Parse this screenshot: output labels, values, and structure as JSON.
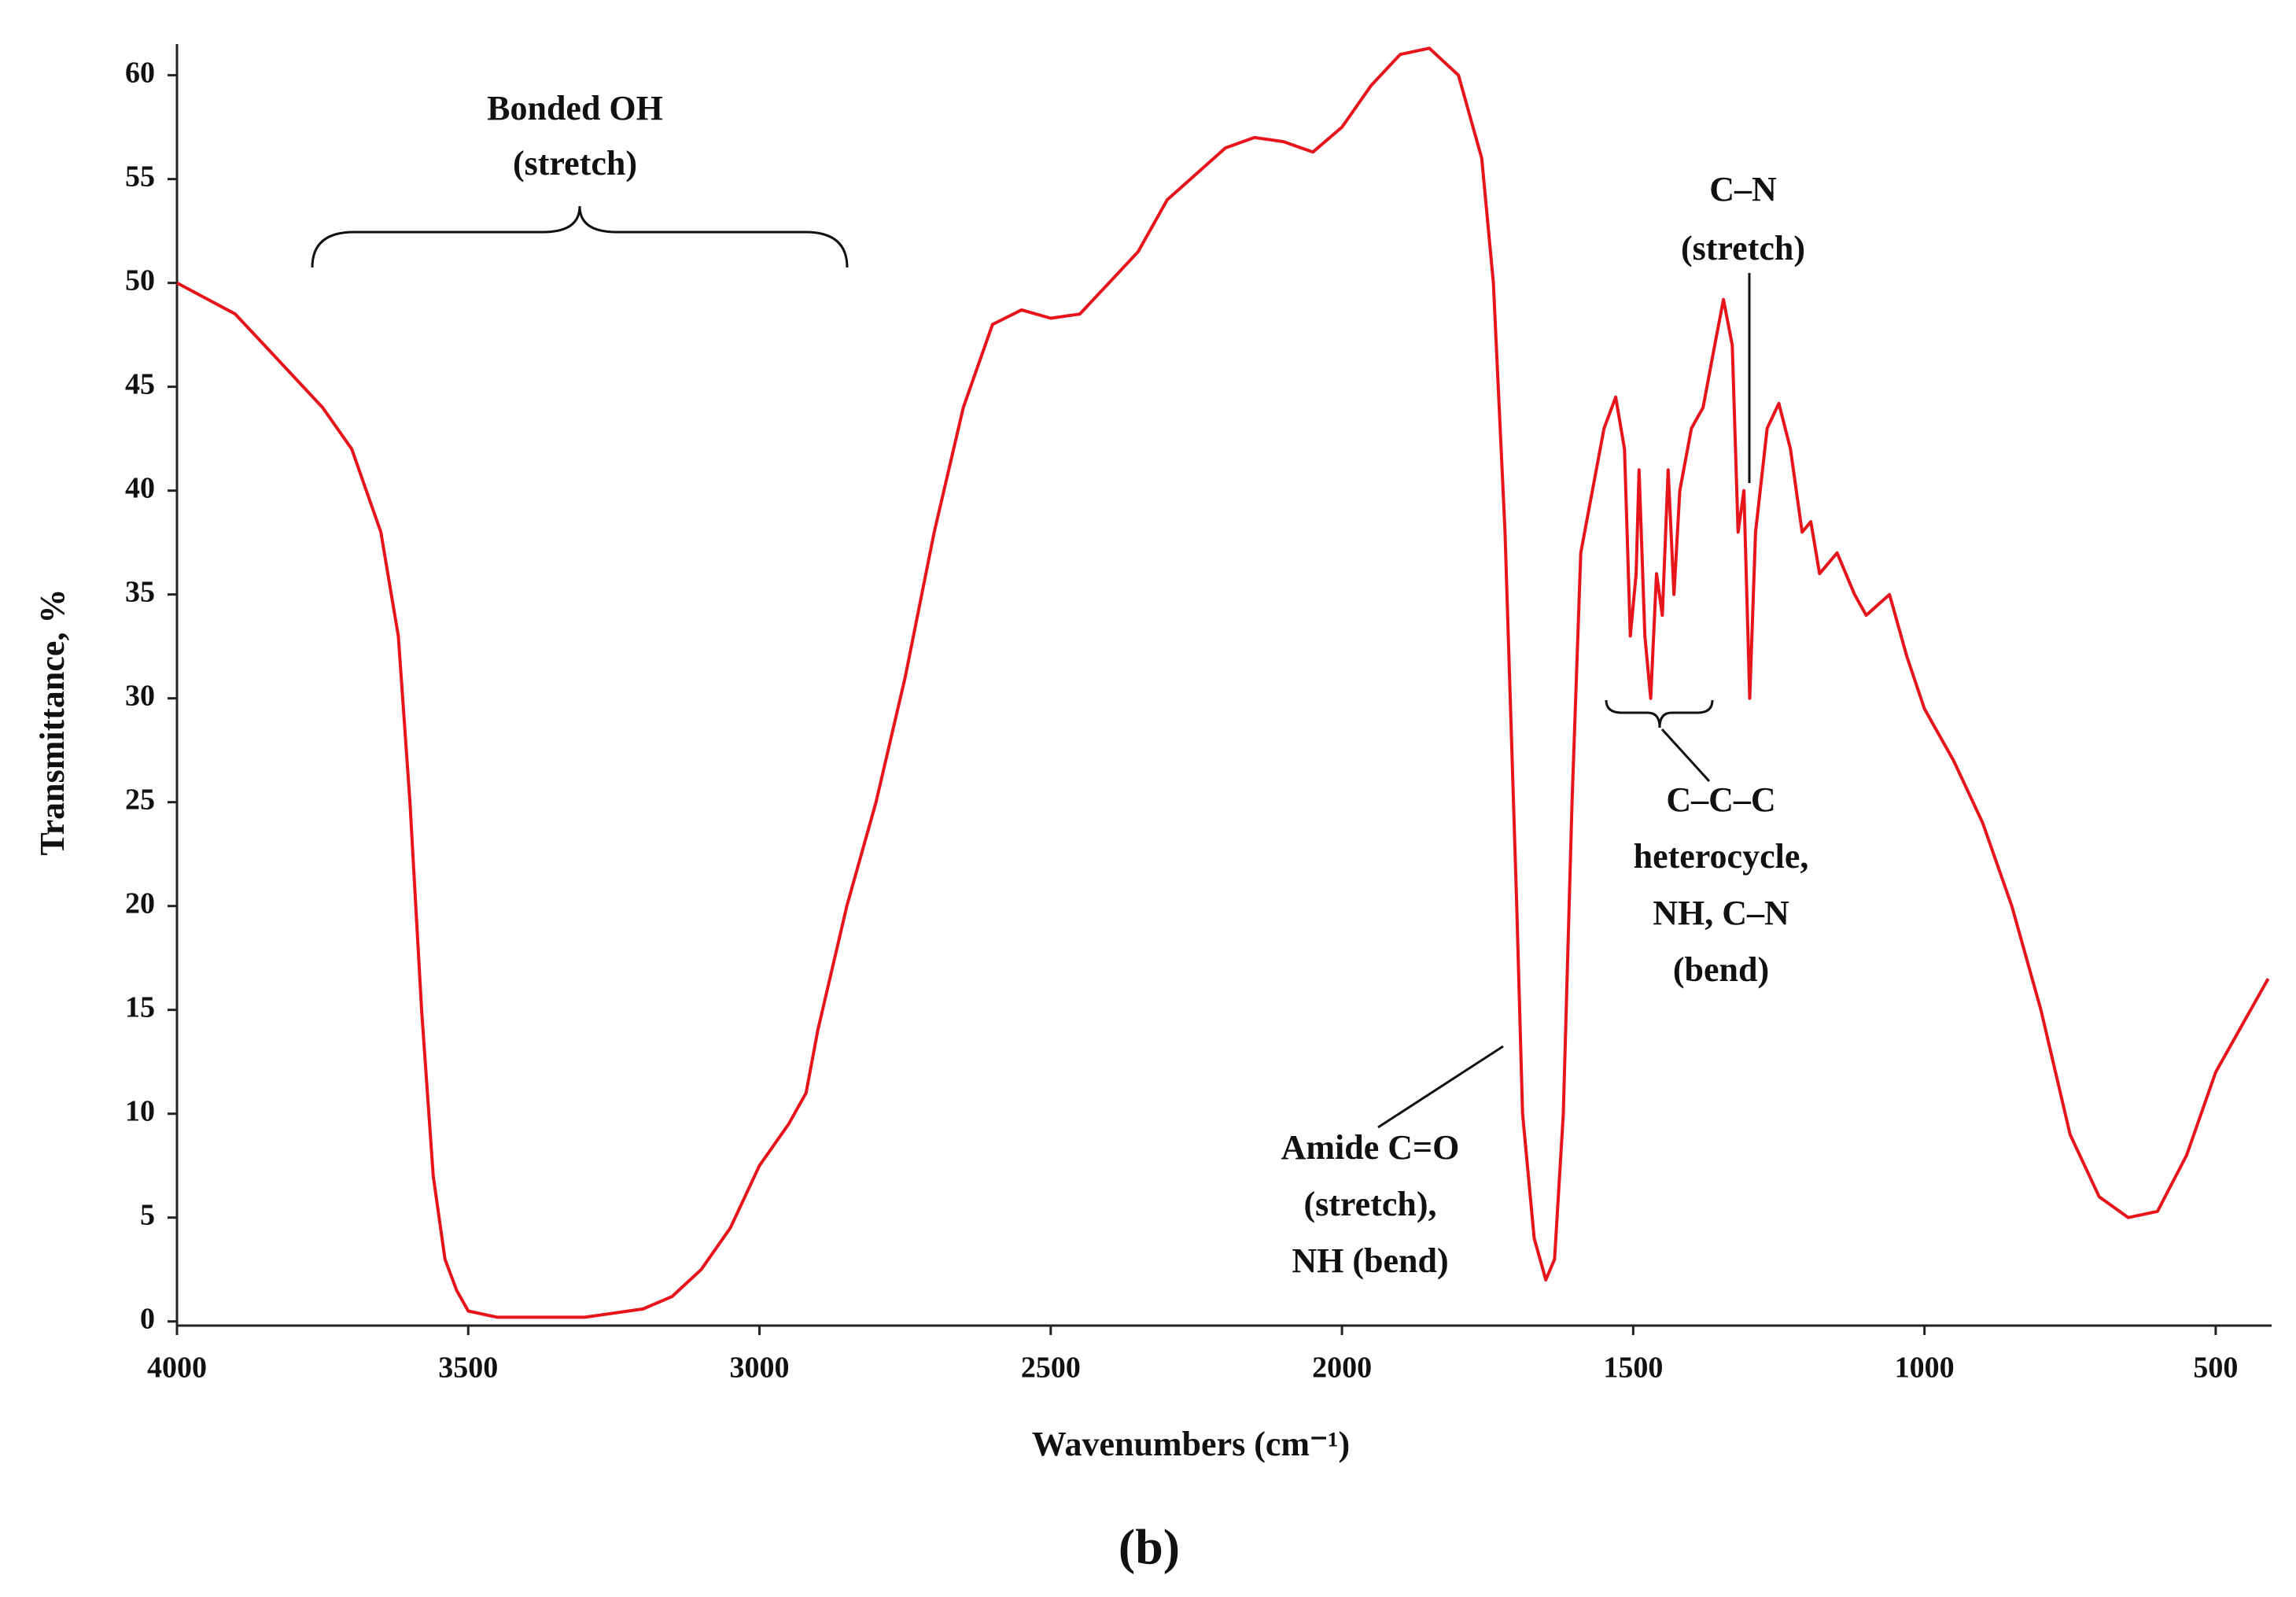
{
  "chart_data": {
    "type": "line",
    "caption": "(b)",
    "x_label": "Wavenumbers (cm⁻¹)",
    "y_label": "Transmittance, %",
    "color": "#e8141c",
    "xlim": [
      4000,
      404
    ],
    "ylim": [
      -0.2,
      61.5
    ],
    "xticks": [
      4000,
      3500,
      3000,
      2500,
      2000,
      1500,
      1000,
      500
    ],
    "yticks": [
      0,
      5,
      10,
      15,
      20,
      25,
      30,
      35,
      40,
      45,
      50,
      55,
      60
    ],
    "annotations": [
      {
        "lines": [
          "Bonded OH",
          "(stretch)"
        ]
      },
      {
        "lines": [
          "C–N",
          "(stretch)"
        ]
      },
      {
        "lines": [
          "C–C–C",
          "heterocycle,",
          "NH, C–N",
          "(bend)"
        ]
      },
      {
        "lines": [
          "Amide C=O",
          "(stretch),",
          "NH (bend)"
        ]
      }
    ],
    "x": [
      4000,
      3900,
      3850,
      3800,
      3750,
      3700,
      3650,
      3620,
      3600,
      3580,
      3560,
      3540,
      3520,
      3500,
      3450,
      3300,
      3200,
      3150,
      3100,
      3050,
      3000,
      2950,
      2920,
      2900,
      2850,
      2800,
      2750,
      2700,
      2650,
      2600,
      2550,
      2500,
      2450,
      2400,
      2350,
      2300,
      2200,
      2150,
      2100,
      2050,
      2000,
      1950,
      1900,
      1850,
      1800,
      1760,
      1740,
      1720,
      1700,
      1690,
      1670,
      1650,
      1635,
      1620,
      1605,
      1590,
      1570,
      1550,
      1530,
      1515,
      1505,
      1495,
      1490,
      1480,
      1470,
      1460,
      1450,
      1440,
      1430,
      1420,
      1400,
      1380,
      1360,
      1345,
      1330,
      1320,
      1310,
      1300,
      1290,
      1270,
      1250,
      1230,
      1210,
      1195,
      1180,
      1150,
      1120,
      1100,
      1060,
      1030,
      1000,
      950,
      900,
      850,
      800,
      750,
      700,
      650,
      600,
      550,
      500,
      450,
      410
    ],
    "values": [
      50,
      48.5,
      47,
      45.5,
      44,
      42,
      38,
      33,
      25,
      15,
      7,
      3,
      1.5,
      0.5,
      0.2,
      0.2,
      0.6,
      1.2,
      2.5,
      4.5,
      7.5,
      9.5,
      11,
      14,
      20,
      25,
      31,
      38,
      44,
      48,
      48.7,
      48.3,
      48.5,
      50,
      51.5,
      54,
      56.5,
      57,
      56.8,
      56.3,
      57.5,
      59.5,
      61,
      61.3,
      60,
      56,
      50,
      38,
      20,
      10,
      4,
      2,
      3,
      10,
      25,
      37,
      40,
      43,
      44.5,
      42,
      33,
      36,
      41,
      33,
      30,
      36,
      34,
      41,
      35,
      40,
      43,
      44,
      47,
      49.2,
      47,
      38,
      40,
      30,
      38,
      43,
      44.2,
      42,
      38,
      38.5,
      36,
      37,
      35,
      34,
      35,
      32,
      29.5,
      27,
      24,
      20,
      15,
      9,
      6,
      5,
      5.3,
      8,
      12,
      14.5,
      16.5
    ]
  }
}
